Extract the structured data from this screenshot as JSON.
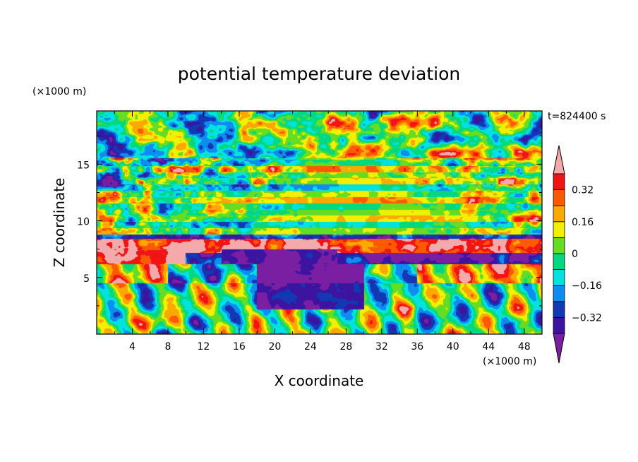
{
  "chart_data": {
    "type": "heatmap",
    "title": "potential temperature deviation",
    "xlabel": "X coordinate",
    "ylabel": "Z coordinate",
    "x_unit": "(×1000 m)",
    "y_unit": "(×1000 m)",
    "time_label": "t=824400 s",
    "xlim": [
      0,
      50
    ],
    "ylim": [
      0,
      19.7
    ],
    "x_ticks": [
      4,
      8,
      12,
      16,
      20,
      24,
      28,
      32,
      36,
      40,
      44,
      48
    ],
    "x_tick_labels": [
      "4",
      "8",
      "12",
      "16",
      "20",
      "24",
      "28",
      "32",
      "36",
      "40",
      "44",
      "48"
    ],
    "y_ticks": [
      5,
      10,
      15
    ],
    "y_tick_labels": [
      "5",
      "10",
      "15"
    ],
    "colorbar": {
      "levels": [
        -0.4,
        -0.32,
        -0.24,
        -0.16,
        -0.08,
        0,
        0.08,
        0.16,
        0.24,
        0.32,
        0.4
      ],
      "tick_values": [
        0.32,
        0.16,
        0,
        -0.16,
        -0.32
      ],
      "tick_labels": [
        "0.32",
        "0.16",
        "0",
        "−0.16",
        "−0.32"
      ],
      "extend": "both",
      "colors": [
        "#7a1fa2",
        "#3c14a0",
        "#1238b4",
        "#0e8cf0",
        "#00e2e0",
        "#00d880",
        "#66dd22",
        "#f0f000",
        "#ffa800",
        "#ff5a00",
        "#f01414",
        "#f4aaaa"
      ]
    }
  }
}
